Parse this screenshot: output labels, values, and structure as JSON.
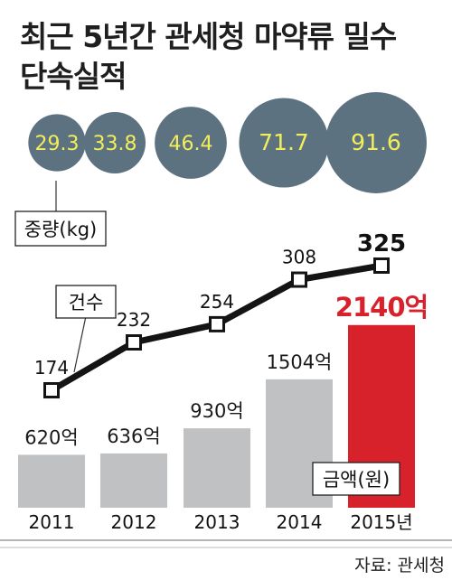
{
  "title_line1": "최근 5년간 관세청 마약류 밀수",
  "title_line2": "단속실적",
  "source": "자료: 관세청",
  "colors": {
    "bubble": "#5d7281",
    "bubble_text": "#f2ee5a",
    "bar": "#bfc1c2",
    "bar_highlight": "#d7222c",
    "line": "#141414",
    "highlight_text": "#d7222c"
  },
  "chart_data": [
    {
      "type": "bubble",
      "label": "중량(kg)",
      "categories": [
        "2011",
        "2012",
        "2013",
        "2014",
        "2015년"
      ],
      "values": [
        29.3,
        33.8,
        46.4,
        71.7,
        91.6
      ],
      "value_labels": [
        "29.3",
        "33.8",
        "46.4",
        "71.7",
        "91.6"
      ]
    },
    {
      "type": "line",
      "label": "건수",
      "categories": [
        "2011",
        "2012",
        "2013",
        "2014",
        "2015년"
      ],
      "values": [
        174,
        232,
        254,
        308,
        325
      ],
      "value_labels": [
        "174",
        "232",
        "254",
        "308",
        "325"
      ]
    },
    {
      "type": "bar",
      "label": "금액(원)",
      "categories": [
        "2011",
        "2012",
        "2013",
        "2014",
        "2015년"
      ],
      "values": [
        620,
        636,
        930,
        1504,
        2140
      ],
      "value_labels": [
        "620억",
        "636억",
        "930억",
        "1504억",
        "2140억"
      ],
      "highlight_index": 4
    }
  ]
}
